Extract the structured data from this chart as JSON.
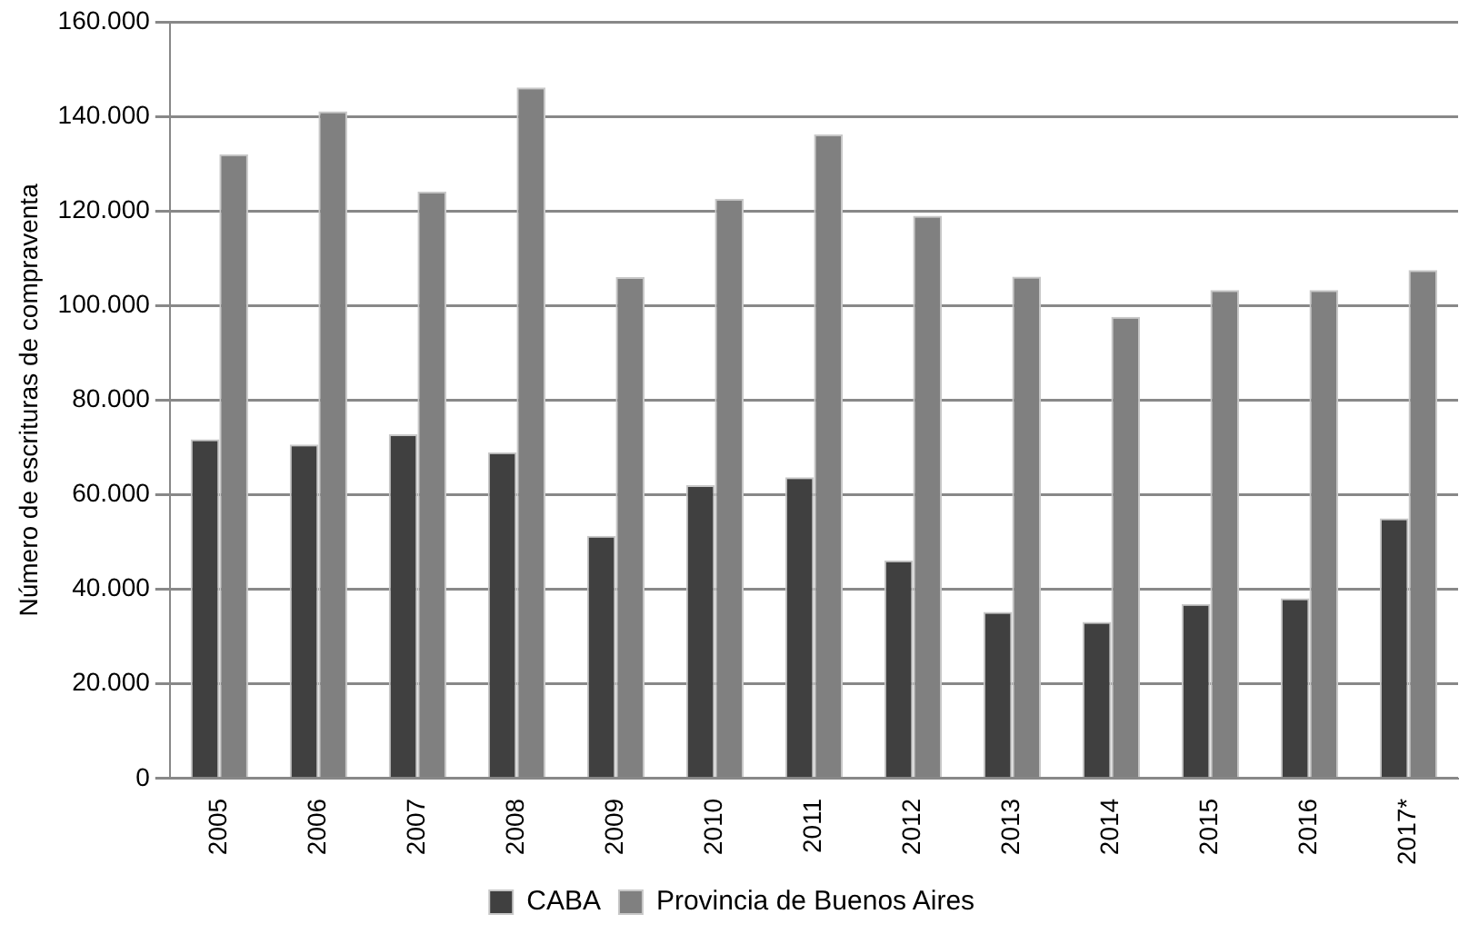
{
  "chart_data": {
    "type": "bar",
    "ylabel": "Número de escrituras de compraventa",
    "categories": [
      "2005",
      "2006",
      "2007",
      "2008",
      "2009",
      "2010",
      "2011",
      "2012",
      "2013",
      "2014",
      "2015",
      "2016",
      "2017*"
    ],
    "series": [
      {
        "name": "CABA",
        "color": "#404040",
        "values": [
          71700,
          70600,
          72800,
          69000,
          51300,
          62000,
          63700,
          46100,
          35200,
          33100,
          36900,
          38100,
          55000
        ]
      },
      {
        "name": "Provincia de Buenos Aires",
        "color": "#808080",
        "values": [
          132000,
          141100,
          124100,
          146100,
          106000,
          122600,
          136200,
          119000,
          106100,
          97600,
          103300,
          103300,
          107500
        ]
      }
    ],
    "ylim": [
      0,
      160000
    ],
    "yticks": [
      0,
      {
        "value": 20000,
        "label": "20.000"
      },
      {
        "value": 40000,
        "label": "40.000"
      },
      {
        "value": 60000,
        "label": "60.000"
      },
      {
        "value": 80000,
        "label": "80.000"
      },
      {
        "value": 100000,
        "label": "100.000"
      },
      {
        "value": 120000,
        "label": "120.000"
      },
      {
        "value": 140000,
        "label": "140.000"
      },
      {
        "value": 160000,
        "label": "160.000"
      }
    ],
    "grid": "y",
    "legend": "bottom"
  }
}
